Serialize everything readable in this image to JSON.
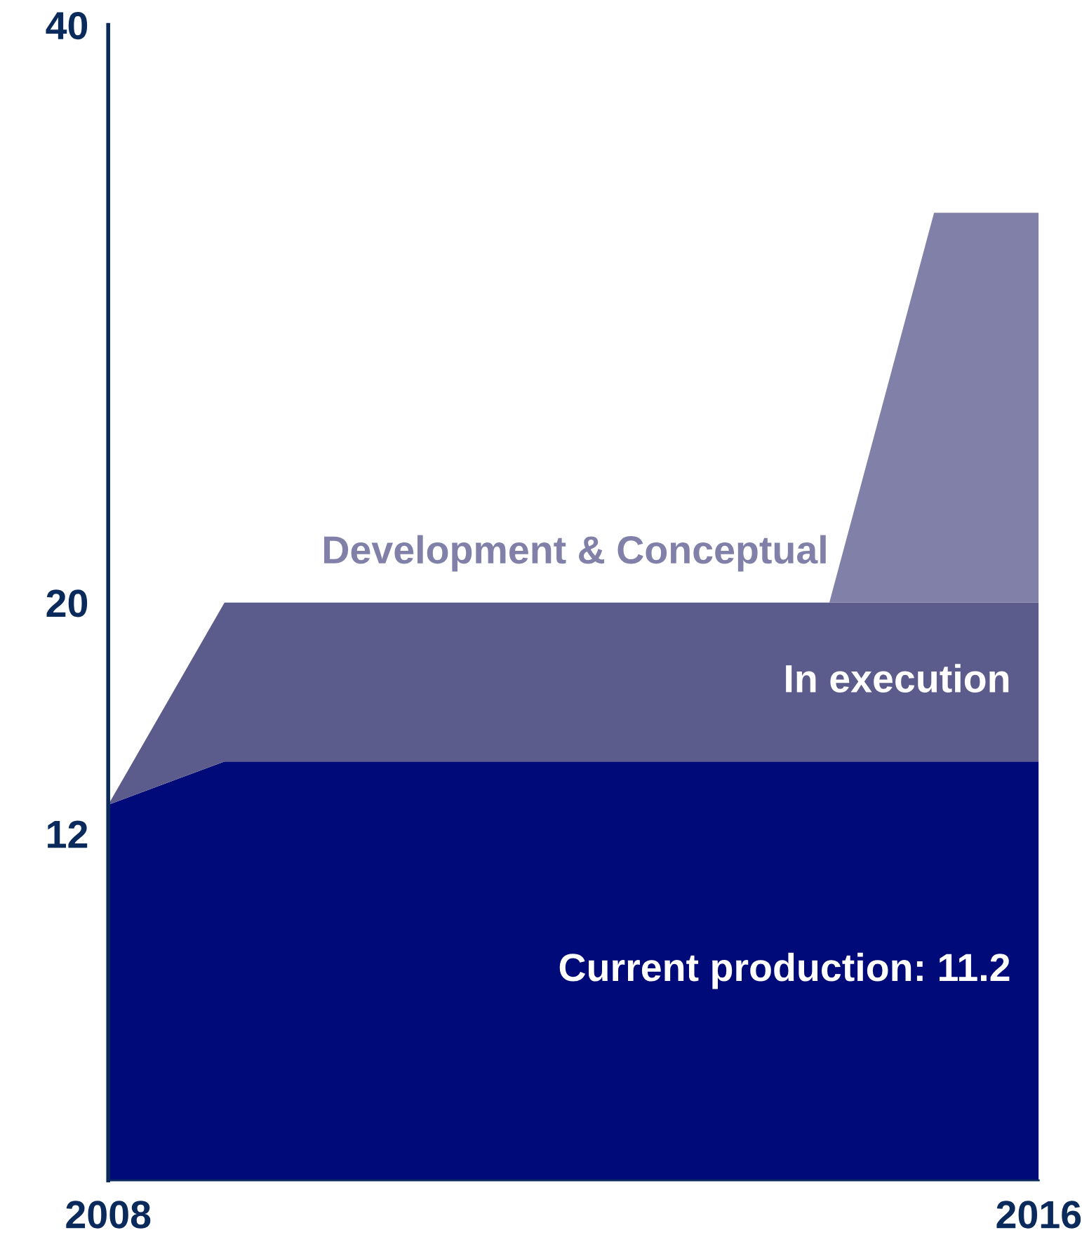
{
  "chart_data": {
    "type": "area",
    "stacked": true,
    "x": [
      2008,
      2009,
      2014.2,
      2015.1,
      2016
    ],
    "series": [
      {
        "name": "Current production: 11.2",
        "color": "#000a78",
        "values": [
          13,
          14.5,
          14.5,
          14.5,
          14.5
        ]
      },
      {
        "name": "In execution",
        "color": "#5c5c8c",
        "values": [
          0,
          5.5,
          5.5,
          5.5,
          5.5
        ]
      },
      {
        "name": "Development & Conceptual",
        "color": "#8080a8",
        "values": [
          0,
          0,
          0,
          13.5,
          13.5
        ]
      }
    ],
    "xlim": [
      2008,
      2016
    ],
    "xticks": [
      2008,
      2016
    ],
    "ylim": [
      0,
      40
    ],
    "yticks": [
      12,
      20,
      40
    ],
    "grid": false,
    "legend": false
  }
}
